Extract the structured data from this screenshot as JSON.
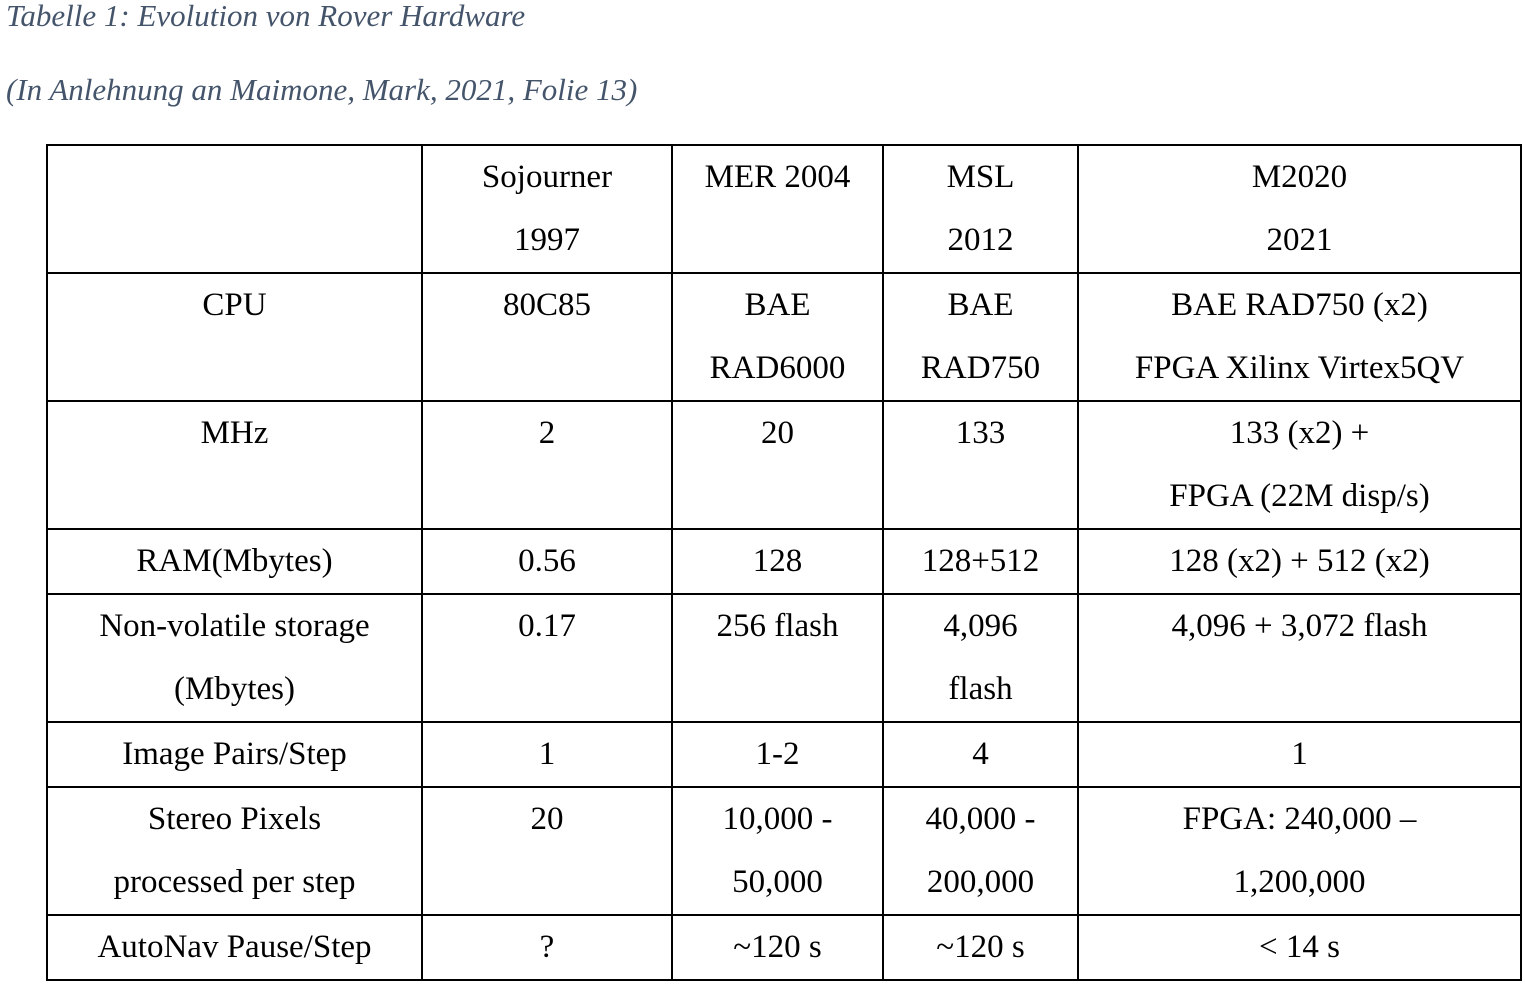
{
  "caption": {
    "title": "Tabelle 1: Evolution von Rover Hardware",
    "source": "(In Anlehnung an Maimone, Mark, 2021, Folie 13)"
  },
  "table": {
    "header": {
      "blank": "",
      "sojourner": [
        "Sojourner",
        "1997"
      ],
      "mer": [
        "MER 2004"
      ],
      "msl": [
        "MSL",
        "2012"
      ],
      "m2020": [
        "M2020",
        "2021"
      ]
    },
    "rows": {
      "cpu": {
        "label": [
          "CPU"
        ],
        "sojourner": [
          "80C85"
        ],
        "mer": [
          "BAE",
          "RAD6000"
        ],
        "msl": [
          "BAE",
          "RAD750"
        ],
        "m2020": [
          "BAE RAD750 (x2)",
          "FPGA Xilinx Virtex5QV"
        ]
      },
      "mhz": {
        "label": [
          "MHz"
        ],
        "sojourner": [
          "2"
        ],
        "mer": [
          "20"
        ],
        "msl": [
          "133"
        ],
        "m2020": [
          "133 (x2) +",
          "FPGA (22M disp/s)"
        ]
      },
      "ram": {
        "label": [
          "RAM(Mbytes)"
        ],
        "sojourner": [
          "0.56"
        ],
        "mer": [
          "128"
        ],
        "msl": [
          "128+512"
        ],
        "m2020": [
          "128 (x2) + 512 (x2)"
        ]
      },
      "storage": {
        "label": [
          "Non-volatile storage",
          "(Mbytes)"
        ],
        "sojourner": [
          "0.17"
        ],
        "mer": [
          "256 flash"
        ],
        "msl": [
          "4,096",
          "flash"
        ],
        "m2020": [
          "4,096 + 3,072 flash"
        ]
      },
      "image_pairs": {
        "label": [
          "Image Pairs/Step"
        ],
        "sojourner": [
          "1"
        ],
        "mer": [
          "1-2"
        ],
        "msl": [
          "4"
        ],
        "m2020": [
          "1"
        ]
      },
      "stereo_pixels": {
        "label": [
          "Stereo Pixels",
          "processed per step"
        ],
        "sojourner": [
          "20"
        ],
        "mer": [
          "10,000 -",
          "50,000"
        ],
        "msl": [
          "40,000 -",
          "200,000"
        ],
        "m2020": [
          "FPGA: 240,000 –",
          "1,200,000"
        ]
      },
      "autonav": {
        "label": [
          "AutoNav Pause/Step"
        ],
        "sojourner": [
          "?"
        ],
        "mer": [
          "~120 s"
        ],
        "msl": [
          "~120 s"
        ],
        "m2020": [
          "< 14 s"
        ]
      }
    }
  }
}
